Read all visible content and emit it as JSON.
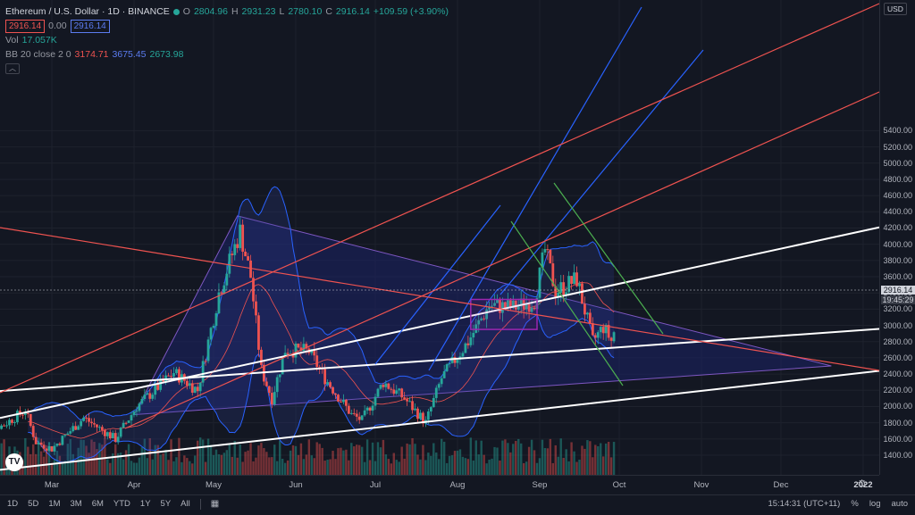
{
  "header": {
    "symbol_title": "Ethereum / U.S. Dollar · 1D · BINANCE",
    "ohlc": {
      "o_label": "O",
      "o": "2804.96",
      "h_label": "H",
      "h": "2931.23",
      "l_label": "L",
      "l": "2780.10",
      "c_label": "C",
      "c": "2916.14",
      "change": "+109.59 (+3.90%)"
    },
    "bid": "2916.14",
    "spread": "0.00",
    "ask": "2916.14",
    "vol_label": "Vol",
    "vol_value": "17.057K",
    "bb_label": "BB 20 close 2 0",
    "bb_basis": "3174.71",
    "bb_upper": "3675.45",
    "bb_lower": "2673.98",
    "collapse_icon": "chevron-up-icon"
  },
  "price_axis": {
    "currency_button": "USD",
    "current_price": "2916.14",
    "countdown": "19:45:29"
  },
  "colors": {
    "up": "#26a69a",
    "down": "#ef5350",
    "background": "#131722",
    "bb_fill": "#2a3b8f",
    "triangle_fill": "#1b2266"
  },
  "chart_data": {
    "type": "candlestick",
    "symbol": "ETHUSD",
    "exchange": "BINANCE",
    "timeframe": "1D",
    "ylim": [
      1200,
      5600
    ],
    "y_ticks": [
      1400,
      1600,
      1800,
      2000,
      2200,
      2400,
      2600,
      2800,
      3000,
      3200,
      3400,
      3600,
      3800,
      4000,
      4200,
      4400,
      4600,
      4800,
      5000,
      5200,
      5400
    ],
    "x_ticks": [
      {
        "label": "Mar",
        "date": "2021-03-01"
      },
      {
        "label": "Apr",
        "date": "2021-04-01"
      },
      {
        "label": "May",
        "date": "2021-05-01"
      },
      {
        "label": "Jun",
        "date": "2021-06-01"
      },
      {
        "label": "Jul",
        "date": "2021-07-01"
      },
      {
        "label": "Aug",
        "date": "2021-08-01"
      },
      {
        "label": "Sep",
        "date": "2021-09-01"
      },
      {
        "label": "Oct",
        "date": "2021-10-01"
      },
      {
        "label": "Nov",
        "date": "2021-11-01"
      },
      {
        "label": "Dec",
        "date": "2021-12-01"
      },
      {
        "label": "2022",
        "date": "2022-01-01",
        "bold": true
      }
    ],
    "price_anchors": [
      {
        "date": "2021-02-01",
        "close": 1800
      },
      {
        "date": "2021-02-10",
        "close": 1760
      },
      {
        "date": "2021-02-19",
        "close": 1950
      },
      {
        "date": "2021-02-23",
        "close": 1560
      },
      {
        "date": "2021-03-01",
        "close": 1480
      },
      {
        "date": "2021-03-13",
        "close": 1860
      },
      {
        "date": "2021-03-25",
        "close": 1600
      },
      {
        "date": "2021-04-02",
        "close": 2000
      },
      {
        "date": "2021-04-16",
        "close": 2420
      },
      {
        "date": "2021-04-25",
        "close": 2200
      },
      {
        "date": "2021-05-03",
        "close": 3400
      },
      {
        "date": "2021-05-11",
        "close": 4160
      },
      {
        "date": "2021-05-15",
        "close": 3600
      },
      {
        "date": "2021-05-19",
        "close": 2450
      },
      {
        "date": "2021-05-23",
        "close": 2100
      },
      {
        "date": "2021-05-28",
        "close": 2700
      },
      {
        "date": "2021-06-06",
        "close": 2680
      },
      {
        "date": "2021-06-12",
        "close": 2350
      },
      {
        "date": "2021-06-22",
        "close": 1900
      },
      {
        "date": "2021-06-26",
        "close": 1830
      },
      {
        "date": "2021-07-04",
        "close": 2300
      },
      {
        "date": "2021-07-12",
        "close": 2100
      },
      {
        "date": "2021-07-20",
        "close": 1800
      },
      {
        "date": "2021-07-26",
        "close": 2350
      },
      {
        "date": "2021-08-05",
        "close": 2800
      },
      {
        "date": "2021-08-13",
        "close": 3250
      },
      {
        "date": "2021-08-22",
        "close": 3220
      },
      {
        "date": "2021-08-30",
        "close": 3300
      },
      {
        "date": "2021-09-03",
        "close": 3930
      },
      {
        "date": "2021-09-07",
        "close": 3420
      },
      {
        "date": "2021-09-15",
        "close": 3570
      },
      {
        "date": "2021-09-21",
        "close": 2800
      },
      {
        "date": "2021-09-25",
        "close": 2980
      },
      {
        "date": "2021-09-28",
        "close": 2810
      },
      {
        "date": "2021-09-29",
        "close": 2916.14
      }
    ],
    "bollinger": {
      "period": 20,
      "source": "close",
      "stddev": 2,
      "basis": 3174.71,
      "upper": 3675.45,
      "lower": 2673.98
    },
    "drawings": [
      {
        "type": "triangle",
        "points": [
          [
            "2021-04-01",
            1900
          ],
          [
            "2021-05-10",
            4350
          ],
          [
            "2021-12-20",
            2500
          ]
        ]
      },
      {
        "type": "trendline",
        "color": "#ffffff",
        "points": [
          [
            "2021-01-01",
            2100
          ],
          [
            "2021-10-01",
            2730
          ]
        ]
      },
      {
        "type": "trendline",
        "color": "#ffffff",
        "points": [
          [
            "2021-02-15",
            1240
          ],
          [
            "2021-09-15",
            2020
          ]
        ]
      },
      {
        "type": "trendline",
        "color": "#ffffff",
        "points": [
          [
            "2021-01-01",
            1580
          ],
          [
            "2022-01-20",
            4300
          ]
        ]
      },
      {
        "type": "rectangle",
        "color": "#9c27b0",
        "points": [
          [
            "2021-08-06",
            3320
          ],
          [
            "2021-08-31",
            2950
          ]
        ]
      }
    ]
  },
  "bottom_bar": {
    "timeframes": [
      "1D",
      "5D",
      "1M",
      "3M",
      "6M",
      "YTD",
      "1Y",
      "5Y",
      "All"
    ],
    "compare_icon": "calendar-range-icon",
    "time": "15:14:31 (UTC+11)",
    "percent": "%",
    "log": "log",
    "auto": "auto"
  },
  "logo_text": "TV"
}
